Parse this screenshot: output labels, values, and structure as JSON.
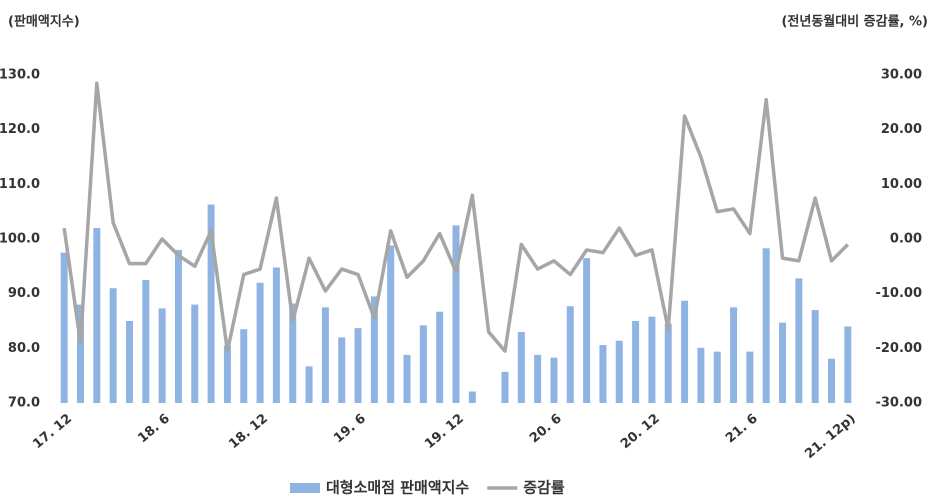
{
  "chart_data": {
    "type": "bar-line",
    "y_label": "(판매액지수)",
    "y2_label": "(전년동월대비 증감률, %)",
    "categories": [
      "17. 12",
      null,
      null,
      null,
      null,
      null,
      "18. 6",
      null,
      null,
      null,
      null,
      null,
      "18. 12",
      null,
      null,
      null,
      null,
      null,
      "19. 6",
      null,
      null,
      null,
      null,
      null,
      "19. 12",
      null,
      null,
      null,
      null,
      null,
      "20. 6",
      null,
      null,
      null,
      null,
      null,
      "20. 12",
      null,
      null,
      null,
      null,
      null,
      "21. 6",
      null,
      null,
      null,
      null,
      null,
      "21. 12p)"
    ],
    "series": [
      {
        "name": "대형소매점 판매액지수",
        "color": "#8fb4e3",
        "kind": "bar",
        "values": [
          97.5,
          88,
          102,
          91,
          85,
          92.5,
          87.3,
          98,
          88,
          106.3,
          80.5,
          83.5,
          92,
          94.8,
          88.2,
          76.7,
          87.5,
          82,
          83.7,
          89.5,
          98.8,
          78.8,
          84.2,
          86.7,
          102.5,
          72.1,
          null,
          75.7,
          83,
          78.8,
          78.3,
          87.7,
          96.5,
          80.6,
          81.4,
          85,
          85.8,
          84.5,
          88.7,
          80.1,
          79.4,
          87.5,
          79.4,
          98.3,
          84.7,
          92.8,
          87,
          78.1,
          84
        ]
      },
      {
        "name": "증감률",
        "color": "#a6a6a6",
        "kind": "line",
        "axis": "y2",
        "values": [
          2,
          -19,
          28.5,
          3,
          -4.5,
          -4.5,
          0,
          -3,
          -5,
          1.5,
          -20.5,
          -6.5,
          -5.5,
          7.5,
          -15,
          -3.5,
          -9.5,
          -5.5,
          -6.5,
          -14.5,
          1.5,
          -7,
          -4,
          1,
          -6,
          8,
          -17,
          -20.5,
          -1,
          -5.5,
          -4,
          -6.5,
          -2,
          -2.5,
          2,
          -3,
          -2,
          -16.5,
          22.5,
          15,
          5,
          5.5,
          1,
          25.5,
          -3.5,
          -4,
          7.5,
          -4,
          -1
        ]
      }
    ],
    "ylim": [
      70,
      130
    ],
    "yticks": [
      {
        "value": 70,
        "label": "70.0"
      },
      {
        "value": 80,
        "label": "80.0"
      },
      {
        "value": 90,
        "label": "90.0"
      },
      {
        "value": 100,
        "label": "100.0"
      },
      {
        "value": 110,
        "label": "110.0"
      },
      {
        "value": 120,
        "label": "120.0"
      },
      {
        "value": 130,
        "label": "130.0"
      }
    ],
    "y2lim": [
      -30,
      30
    ],
    "y2ticks": [
      {
        "value": -30,
        "label": "-30.00"
      },
      {
        "value": -20,
        "label": "-20.00"
      },
      {
        "value": -10,
        "label": "-10.00"
      },
      {
        "value": 0,
        "label": "0.00"
      },
      {
        "value": 10,
        "label": "10.00"
      },
      {
        "value": 20,
        "label": "20.00"
      },
      {
        "value": 30,
        "label": "30.00"
      }
    ],
    "legend": "bottom"
  }
}
